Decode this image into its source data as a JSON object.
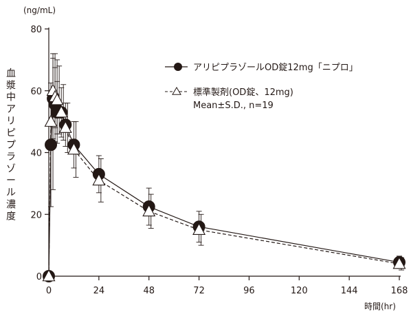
{
  "chart_data": {
    "type": "line",
    "y_unit_label": "(ng/mL)",
    "x_unit_label": "時間(hr)",
    "ylabel": "血漿中アリピプラゾール濃度",
    "xlim": [
      0,
      168
    ],
    "ylim": [
      0,
      80
    ],
    "x_ticks": [
      "0",
      "24",
      "48",
      "72",
      "96",
      "120",
      "144",
      "168"
    ],
    "y_ticks": [
      "0",
      "20",
      "40",
      "60",
      "80"
    ],
    "legend_position": "top-right",
    "legend_note": "Mean±S.D., n=19",
    "series": [
      {
        "name": "アリピプラゾールOD錠12mg「ニプロ」",
        "marker": "filled-circle",
        "line": "solid",
        "color": "#231815",
        "x": [
          0,
          1,
          2,
          3,
          4,
          6,
          8,
          12,
          24,
          48,
          72,
          168
        ],
        "y": [
          0,
          42.5,
          57.5,
          55.5,
          53,
          53,
          49,
          42.5,
          33,
          22.5,
          16,
          4.5
        ],
        "sd": [
          0,
          20,
          13,
          12,
          10,
          8,
          7,
          7.5,
          6,
          6,
          5,
          2
        ]
      },
      {
        "name": "標準製剤(OD錠、12mg)",
        "marker": "open-triangle",
        "line": "dashed",
        "color": "#231815",
        "x": [
          0,
          1,
          2,
          3,
          4,
          6,
          8,
          12,
          24,
          48,
          72,
          168
        ],
        "y": [
          0,
          50,
          60,
          58,
          57,
          53,
          48,
          41,
          31,
          21,
          15,
          4
        ],
        "sd": [
          0,
          22,
          12,
          12,
          11,
          9,
          8,
          9,
          7,
          5.5,
          5,
          2
        ]
      }
    ]
  }
}
